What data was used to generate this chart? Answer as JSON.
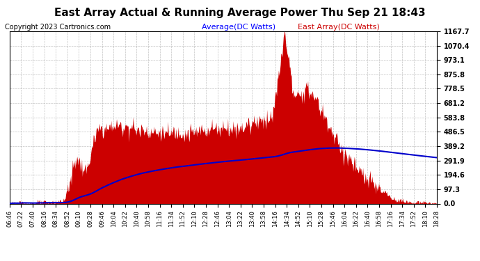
{
  "title": "East Array Actual & Running Average Power Thu Sep 21 18:43",
  "copyright": "Copyright 2023 Cartronics.com",
  "legend_avg": "Average(DC Watts)",
  "legend_east": "East Array(DC Watts)",
  "ymin": 0.0,
  "ymax": 1167.7,
  "yticks": [
    0.0,
    97.3,
    194.6,
    291.9,
    389.2,
    486.5,
    583.8,
    681.2,
    778.5,
    875.8,
    973.1,
    1070.4,
    1167.7
  ],
  "xtick_labels": [
    "06:46",
    "07:22",
    "07:40",
    "08:16",
    "08:34",
    "08:52",
    "09:10",
    "09:28",
    "09:46",
    "10:04",
    "10:22",
    "10:40",
    "10:58",
    "11:16",
    "11:34",
    "11:52",
    "12:10",
    "12:28",
    "12:46",
    "13:04",
    "13:22",
    "13:40",
    "13:58",
    "14:16",
    "14:34",
    "14:52",
    "15:10",
    "15:28",
    "15:46",
    "16:04",
    "16:22",
    "16:40",
    "16:58",
    "17:16",
    "17:34",
    "17:52",
    "18:10",
    "18:28"
  ],
  "background_color": "#ffffff",
  "plot_bg_color": "#ffffff",
  "grid_color": "#aaaaaa",
  "area_color": "#cc0000",
  "line_color": "#0000cc",
  "title_color": "#000000",
  "copyright_color": "#000000",
  "legend_avg_color": "#0000ff",
  "legend_east_color": "#cc0000",
  "yaxis_color": "#000000",
  "title_fontsize": 11,
  "copyright_fontsize": 7,
  "legend_fontsize": 8,
  "tick_fontsize": 7,
  "xtick_fontsize": 6
}
